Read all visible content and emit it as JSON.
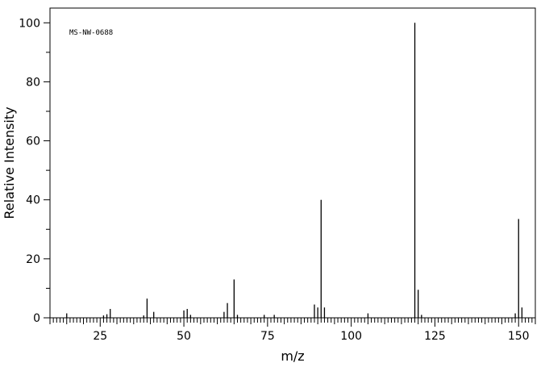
{
  "chart_data": {
    "type": "bar",
    "annotation": "MS-NW-0688",
    "xlabel": "m/z",
    "ylabel": "Relative Intensity",
    "xlim": [
      10,
      155
    ],
    "ylim": [
      0,
      105
    ],
    "x_ticks": [
      25,
      50,
      75,
      100,
      125,
      150
    ],
    "y_ticks": [
      0,
      20,
      40,
      60,
      80,
      100
    ],
    "peaks": [
      {
        "mz": 15,
        "intensity": 1.5
      },
      {
        "mz": 26,
        "intensity": 0.8
      },
      {
        "mz": 27,
        "intensity": 1.2
      },
      {
        "mz": 28,
        "intensity": 3.0
      },
      {
        "mz": 38,
        "intensity": 0.8
      },
      {
        "mz": 39,
        "intensity": 6.5
      },
      {
        "mz": 41,
        "intensity": 2.0
      },
      {
        "mz": 50,
        "intensity": 2.5
      },
      {
        "mz": 51,
        "intensity": 3.0
      },
      {
        "mz": 52,
        "intensity": 1.0
      },
      {
        "mz": 62,
        "intensity": 2.0
      },
      {
        "mz": 63,
        "intensity": 5.0
      },
      {
        "mz": 65,
        "intensity": 13.0
      },
      {
        "mz": 66,
        "intensity": 1.0
      },
      {
        "mz": 74,
        "intensity": 1.0
      },
      {
        "mz": 77,
        "intensity": 1.0
      },
      {
        "mz": 89,
        "intensity": 4.5
      },
      {
        "mz": 90,
        "intensity": 3.5
      },
      {
        "mz": 91,
        "intensity": 40.0
      },
      {
        "mz": 92,
        "intensity": 3.5
      },
      {
        "mz": 105,
        "intensity": 1.5
      },
      {
        "mz": 119,
        "intensity": 100.0
      },
      {
        "mz": 120,
        "intensity": 9.5
      },
      {
        "mz": 121,
        "intensity": 1.0
      },
      {
        "mz": 149,
        "intensity": 1.5
      },
      {
        "mz": 150,
        "intensity": 33.5
      },
      {
        "mz": 151,
        "intensity": 3.5
      }
    ]
  }
}
